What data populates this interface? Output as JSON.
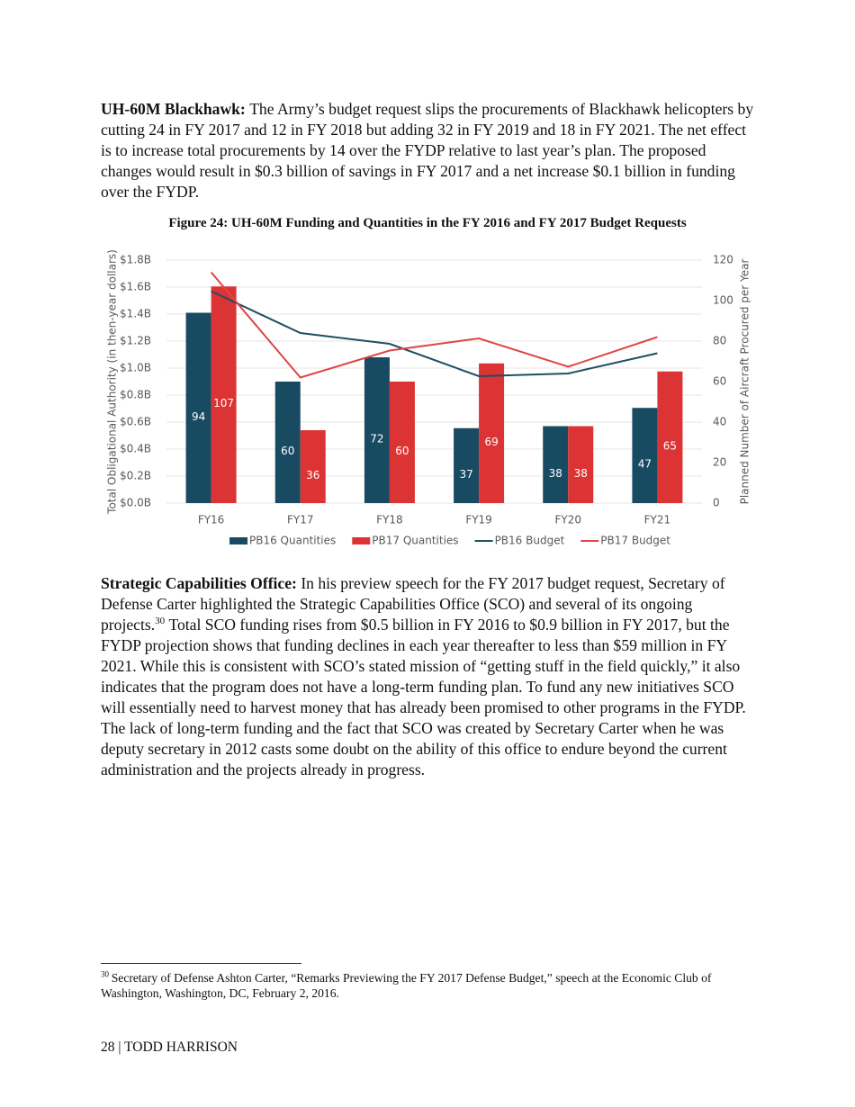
{
  "paragraphs": [
    {
      "lead": "UH-60M Blackhawk:",
      "text": "The Army’s budget request slips the procurements of Blackhawk helicopters by cutting 24 in FY 2017 and 12 in FY 2018 but adding 32 in FY 2019 and 18 in FY 2021. The net effect is to increase total procurements by 14 over the FYDP relative to last year’s plan. The proposed changes would result in $0.3 billion of savings in FY 2017 and a net increase $0.1 billion in funding over the FYDP."
    },
    {
      "lead": "Strategic Capabilities Office:",
      "text": "In his preview speech for the FY 2017 budget request, Secretary of Defense Carter highlighted the Strategic Capabilities Office (SCO) and several of its ongoing projects.",
      "note_ref": "30",
      "text_after": "Total SCO funding rises from $0.5 billion in FY 2016 to $0.9 billion in FY 2017, but the FYDP projection shows that funding declines in each year thereafter to less than $59 million in FY 2021. While this is consistent with SCO’s stated mission of “getting stuff in the field quickly,” it also indicates that the program does not have a long-term funding plan. To fund any new initiatives SCO will essentially need to harvest money that has already been promised to other programs in the FYDP. The lack of long-term funding and the fact that SCO was created by Secretary Carter when he was deputy secretary in 2012 casts some doubt on the ability of this office to endure beyond the current administration and the projects already in progress."
    }
  ],
  "figure": {
    "caption": "Figure 24: UH-60M Funding and Quantities in the FY 2016 and FY 2017 Budget Requests"
  },
  "chart_data": {
    "type": "combo",
    "categories": [
      "FY16",
      "FY17",
      "FY18",
      "FY19",
      "FY20",
      "FY21"
    ],
    "y_label": "Total Obligational Authority (in then-year dollars)",
    "y2_label": "Planned Number of Aircraft Procured per Year",
    "ylim": [
      0,
      1.8
    ],
    "yticks": [
      {
        "value": 0,
        "label": "$0.0B"
      },
      {
        "value": 0.2,
        "label": "$0.2B"
      },
      {
        "value": 0.4,
        "label": "$0.4B"
      },
      {
        "value": 0.6,
        "label": "$0.6B"
      },
      {
        "value": 0.8,
        "label": "$0.8B"
      },
      {
        "value": 1.0,
        "label": "$1.0B"
      },
      {
        "value": 1.2,
        "label": "$1.2B"
      },
      {
        "value": 1.4,
        "label": "$1.4B"
      },
      {
        "value": 1.6,
        "label": "$1.6B"
      },
      {
        "value": 1.8,
        "label": "$1.8B"
      }
    ],
    "y2lim": [
      0,
      120
    ],
    "y2ticks": [
      0,
      20,
      40,
      60,
      80,
      100,
      120
    ],
    "grid": true,
    "legend": "bottom",
    "series": [
      {
        "name": "PB16 Quantities",
        "type": "bar",
        "axis": "y2",
        "color": "#184a61",
        "values": [
          94,
          60,
          72,
          37,
          38,
          47
        ]
      },
      {
        "name": "PB17 Quantities",
        "type": "bar",
        "axis": "y2",
        "color": "#dc3434",
        "values": [
          107,
          36,
          60,
          69,
          38,
          65
        ]
      },
      {
        "name": "PB16 Budget",
        "type": "line",
        "color": "#1f4e63",
        "values": [
          1.57,
          1.26,
          1.18,
          0.94,
          0.96,
          1.11
        ]
      },
      {
        "name": "PB17 Budget",
        "type": "line",
        "color": "#e04444",
        "values": [
          1.71,
          0.93,
          1.13,
          1.22,
          1.01,
          1.23
        ]
      }
    ]
  },
  "footnote": {
    "number": "30",
    "text": "Secretary of Defense Ashton Carter, “Remarks Previewing the FY 2017 Defense Budget,” speech at the Economic Club of Washington, Washington, DC, February 2, 2016."
  },
  "footer": "28 | TODD HARRISON"
}
